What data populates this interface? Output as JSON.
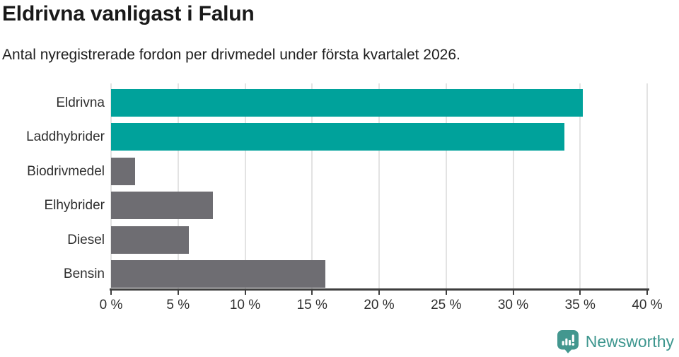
{
  "header": {
    "title": "Eldrivna vanligast i Falun",
    "subtitle": "Antal nyregistrerade fordon per drivmedel under första kvartalet 2026."
  },
  "chart_data": {
    "type": "bar",
    "orientation": "horizontal",
    "title": "Eldrivna vanligast i Falun",
    "subtitle": "Antal nyregistrerade fordon per drivmedel under första kvartalet 2026.",
    "categories": [
      "Eldrivna",
      "Laddhybrider",
      "Biodrivmedel",
      "Elhybrider",
      "Diesel",
      "Bensin"
    ],
    "values": [
      35.2,
      33.8,
      1.8,
      7.6,
      5.8,
      16.0
    ],
    "unit": "%",
    "xlabel": "",
    "ylabel": "",
    "xlim": [
      0,
      40
    ],
    "x_tick_values": [
      0,
      5,
      10,
      15,
      20,
      25,
      30,
      35,
      40
    ],
    "x_tick_labels": [
      "0 %",
      "5 %",
      "10 %",
      "15 %",
      "20 %",
      "25 %",
      "30 %",
      "35 %",
      "40 %"
    ],
    "grid": "vertical-on",
    "legend": "none",
    "bar_colors": [
      "#00a29b",
      "#00a29b",
      "#6e6d72",
      "#6e6d72",
      "#6e6d72",
      "#6e6d72"
    ]
  },
  "colors": {
    "accent_teal": "#00a29b",
    "neutral_gray": "#6e6d72",
    "gridline": "#e3e3e3",
    "axis": "#3e3e3e",
    "logo_teal": "#3d968e"
  },
  "footer": {
    "brand": "Newsworthy",
    "logo_icon": "bar-chart-speech-bubble-icon"
  }
}
